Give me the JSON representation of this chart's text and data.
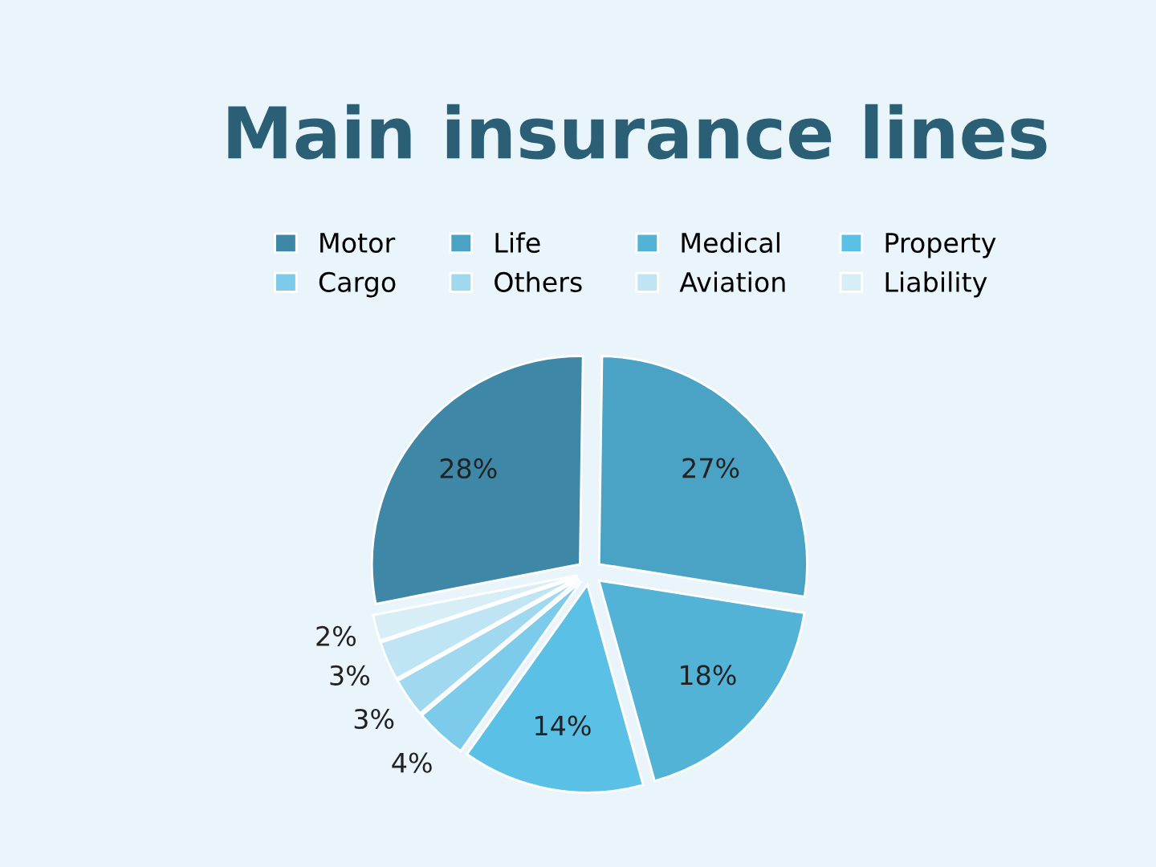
{
  "chart_data": {
    "type": "pie",
    "title": "Main insurance lines",
    "categories": [
      "Motor",
      "Life",
      "Medical",
      "Property",
      "Cargo",
      "Others",
      "Aviation",
      "Liability"
    ],
    "values": [
      28,
      27,
      18,
      14,
      4,
      3,
      3,
      2
    ],
    "value_labels": [
      "28%",
      "27%",
      "18%",
      "14%",
      "4%",
      "3%",
      "3%",
      "2%"
    ],
    "colors": [
      "#3f87a6",
      "#4aa3c4",
      "#52b3d6",
      "#5bc0e5",
      "#7dcbea",
      "#a0d8ef",
      "#bfe4f3",
      "#d8eef7"
    ],
    "legend": "top"
  }
}
